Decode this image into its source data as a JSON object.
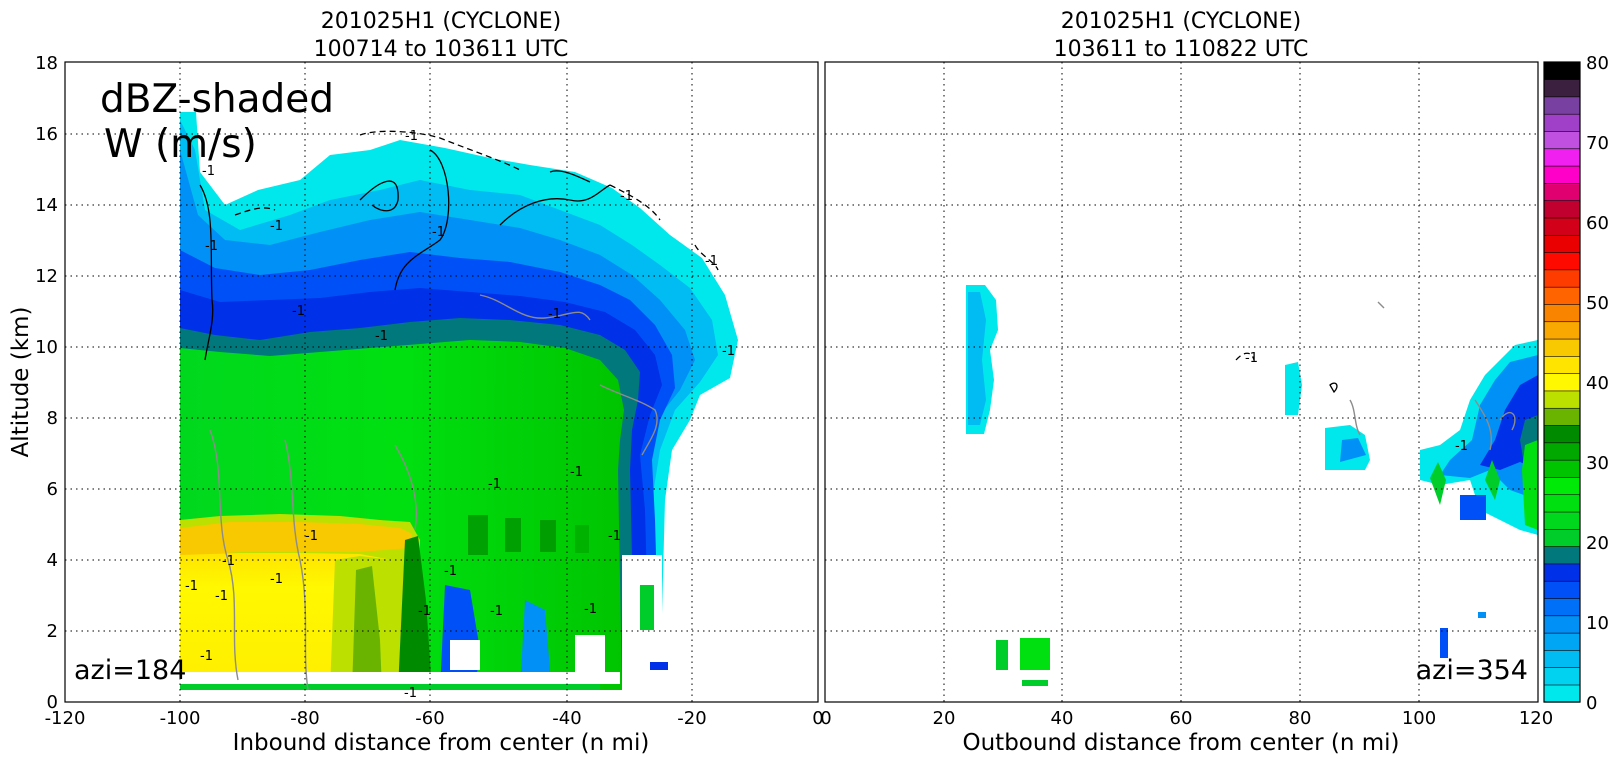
{
  "chart_data": [
    {
      "type": "heatmap",
      "title": "201025H1 (CYCLONE)",
      "subtitle": "100714 to 103611 UTC",
      "xlabel": "Inbound distance from center (n mi)",
      "ylabel": "Altitude (km)",
      "xlim": [
        -120,
        0
      ],
      "ylim": [
        0,
        18
      ],
      "xticks": [
        -120,
        -100,
        -80,
        -60,
        -40,
        -20,
        0
      ],
      "yticks": [
        0,
        2,
        4,
        6,
        8,
        10,
        12,
        14,
        16,
        18
      ],
      "grid": true,
      "annotation_main": [
        "dBZ-shaded",
        "W (m/s)"
      ],
      "annotation_azimuth": "azi=184",
      "contour_label": "-1",
      "echo_region": {
        "x_range": [
          -101,
          -13
        ],
        "echo_top_km": 16.5,
        "bright_band_km": [
          4,
          5
        ],
        "profile_dbz": [
          {
            "altitude_range": [
              0.3,
              4.8
            ],
            "dbz": 37
          },
          {
            "altitude_range": [
              5,
              9.5
            ],
            "dbz": 21
          },
          {
            "altitude_range": [
              9.5,
              11.5
            ],
            "dbz": 10
          },
          {
            "altitude_range": [
              11.5,
              15.5
            ],
            "dbz": 5
          }
        ]
      }
    },
    {
      "type": "heatmap",
      "title": "201025H1 (CYCLONE)",
      "subtitle": "103611 to 110822 UTC",
      "xlabel": "Outbound distance from center (n mi)",
      "ylabel": "",
      "xlim": [
        0,
        120
      ],
      "ylim": [
        0,
        18
      ],
      "xticks": [
        0,
        20,
        40,
        60,
        80,
        100,
        120
      ],
      "grid": true,
      "annotation_azimuth": "azi=354",
      "contour_label": "-1",
      "echo_cells": [
        {
          "x_range": [
            24,
            30
          ],
          "altitude_range": [
            7.6,
            11.7
          ],
          "dbz": 3
        },
        {
          "x_range": [
            29,
            38
          ],
          "altitude_range": [
            0.5,
            1.8
          ],
          "dbz": 20
        },
        {
          "x_range": [
            78,
            81
          ],
          "altitude_range": [
            7.7,
            9.7
          ],
          "dbz": 3
        },
        {
          "x_range": [
            85,
            93
          ],
          "altitude_range": [
            6.5,
            7.9
          ],
          "dbz": 8
        },
        {
          "x_range": [
            99,
            120
          ],
          "altitude_range": [
            5,
            10.3
          ],
          "dbz": 12
        }
      ]
    }
  ],
  "colorbar": {
    "min": 0,
    "max": 80,
    "step": 2.5,
    "ticks": [
      0,
      10,
      20,
      30,
      40,
      50,
      60,
      70,
      80
    ],
    "colors": [
      "#00e8ec",
      "#00d2f0",
      "#00bcf2",
      "#00a6f4",
      "#0090f6",
      "#0070f8",
      "#0050f8",
      "#0030e8",
      "#00787c",
      "#00cc2a",
      "#00d81e",
      "#00e010",
      "#00ea08",
      "#00c400",
      "#00a800",
      "#008a00",
      "#6ab400",
      "#bce000",
      "#fff800",
      "#ffe400",
      "#f8c800",
      "#f8a800",
      "#f88400",
      "#ff6400",
      "#ff3c00",
      "#ff0a00",
      "#ea0000",
      "#d20018",
      "#c20030",
      "#e00070",
      "#ff00c8",
      "#f020f0",
      "#c050e0",
      "#a040c8",
      "#7840a0",
      "#3c2040",
      "#000000"
    ]
  }
}
